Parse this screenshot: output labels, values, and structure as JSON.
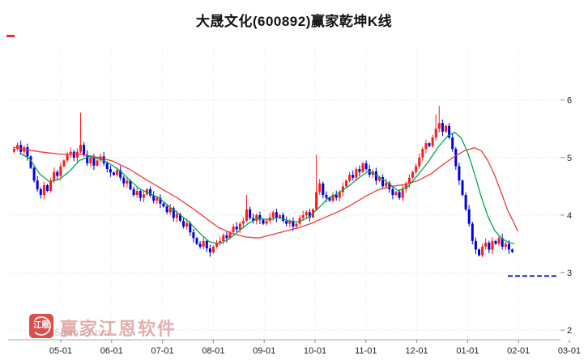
{
  "title": "大晟文化(600892)赢家乾坤K线",
  "watermark": {
    "brand": "赢家江恩软件",
    "logo_text": "江恩",
    "site": "55gann.com"
  },
  "chart_data": {
    "type": "candlestick",
    "title": "大晟文化(600892)赢家乾坤K线",
    "stock_name": "大晟文化",
    "stock_code": "600892",
    "ylim": [
      2,
      6
    ],
    "y_ticks": [
      6,
      5,
      4,
      3,
      2
    ],
    "x_ticks": [
      "05-01",
      "06-01",
      "07-01",
      "08-01",
      "09-01",
      "10-01",
      "11-01",
      "12-01",
      "01-01",
      "02-01",
      "03-01"
    ],
    "grid": true,
    "open_first": 5.1,
    "closes": [
      5.15,
      5.22,
      5.1,
      5.18,
      5.02,
      4.82,
      4.6,
      4.45,
      4.35,
      4.52,
      4.42,
      4.6,
      4.75,
      4.68,
      4.85,
      4.95,
      5.05,
      5.1,
      5.0,
      5.1,
      5.22,
      5.05,
      4.9,
      5.0,
      4.86,
      4.95,
      5.02,
      4.9,
      4.8,
      4.74,
      4.7,
      4.78,
      4.65,
      4.55,
      4.6,
      4.45,
      4.35,
      4.42,
      4.3,
      4.36,
      4.45,
      4.34,
      4.25,
      4.3,
      4.2,
      4.15,
      4.05,
      4.12,
      3.95,
      4.02,
      3.9,
      3.8,
      3.86,
      3.7,
      3.6,
      3.5,
      3.45,
      3.55,
      3.42,
      3.35,
      3.45,
      3.52,
      3.55,
      3.65,
      3.6,
      3.7,
      3.8,
      3.75,
      3.85,
      3.9,
      4.1,
      3.95,
      3.9,
      4.0,
      3.92,
      3.85,
      3.9,
      3.96,
      4.05,
      3.95,
      4.0,
      3.9,
      3.85,
      3.9,
      3.8,
      3.85,
      3.95,
      4.0,
      4.05,
      3.96,
      4.1,
      4.4,
      4.55,
      4.35,
      4.3,
      4.25,
      4.35,
      4.3,
      4.4,
      4.5,
      4.6,
      4.7,
      4.65,
      4.8,
      4.75,
      4.9,
      4.8,
      4.7,
      4.76,
      4.6,
      4.66,
      4.5,
      4.56,
      4.45,
      4.35,
      4.4,
      4.3,
      4.45,
      4.55,
      4.65,
      4.75,
      4.85,
      5.0,
      5.15,
      5.25,
      5.2,
      5.35,
      5.5,
      5.6,
      5.45,
      5.55,
      5.35,
      5.15,
      4.85,
      4.6,
      4.35,
      4.1,
      3.85,
      3.55,
      3.4,
      3.3,
      3.45,
      3.52,
      3.4,
      3.55,
      3.5,
      3.6,
      3.45,
      3.5,
      3.4,
      3.36
    ],
    "spike_highs": {
      "20": 5.78,
      "70": 4.35,
      "91": 5.05,
      "127": 5.75,
      "128": 5.9
    },
    "ma_red": [
      [
        0,
        5.18
      ],
      [
        8,
        5.1
      ],
      [
        14,
        5.06
      ],
      [
        20,
        5.06
      ],
      [
        26,
        5.0
      ],
      [
        30,
        4.94
      ],
      [
        35,
        4.8
      ],
      [
        40,
        4.62
      ],
      [
        45,
        4.45
      ],
      [
        50,
        4.28
      ],
      [
        55,
        4.08
      ],
      [
        58,
        3.95
      ],
      [
        62,
        3.78
      ],
      [
        66,
        3.68
      ],
      [
        70,
        3.62
      ],
      [
        74,
        3.6
      ],
      [
        78,
        3.66
      ],
      [
        82,
        3.72
      ],
      [
        86,
        3.78
      ],
      [
        90,
        3.86
      ],
      [
        94,
        3.96
      ],
      [
        98,
        4.06
      ],
      [
        102,
        4.18
      ],
      [
        106,
        4.32
      ],
      [
        110,
        4.44
      ],
      [
        114,
        4.5
      ],
      [
        118,
        4.53
      ],
      [
        122,
        4.6
      ],
      [
        126,
        4.72
      ],
      [
        130,
        4.9
      ],
      [
        133,
        5.02
      ],
      [
        136,
        5.12
      ],
      [
        139,
        5.17
      ],
      [
        141,
        5.12
      ],
      [
        143,
        4.95
      ],
      [
        145,
        4.7
      ],
      [
        147,
        4.4
      ],
      [
        149,
        4.08
      ],
      [
        151,
        3.85
      ],
      [
        152,
        3.72
      ]
    ],
    "ma_green": [
      [
        2,
        5.08
      ],
      [
        5,
        4.98
      ],
      [
        8,
        4.72
      ],
      [
        11,
        4.58
      ],
      [
        14,
        4.62
      ],
      [
        17,
        4.76
      ],
      [
        20,
        4.95
      ],
      [
        23,
        5.02
      ],
      [
        26,
        4.98
      ],
      [
        29,
        4.9
      ],
      [
        32,
        4.78
      ],
      [
        35,
        4.62
      ],
      [
        38,
        4.46
      ],
      [
        41,
        4.38
      ],
      [
        44,
        4.3
      ],
      [
        47,
        4.15
      ],
      [
        50,
        4.02
      ],
      [
        53,
        3.88
      ],
      [
        56,
        3.7
      ],
      [
        59,
        3.54
      ],
      [
        62,
        3.5
      ],
      [
        65,
        3.58
      ],
      [
        68,
        3.72
      ],
      [
        71,
        3.86
      ],
      [
        74,
        3.95
      ],
      [
        77,
        3.92
      ],
      [
        80,
        3.96
      ],
      [
        83,
        3.9
      ],
      [
        86,
        3.88
      ],
      [
        89,
        3.96
      ],
      [
        92,
        4.12
      ],
      [
        95,
        4.3
      ],
      [
        98,
        4.38
      ],
      [
        101,
        4.5
      ],
      [
        104,
        4.64
      ],
      [
        107,
        4.76
      ],
      [
        110,
        4.68
      ],
      [
        113,
        4.56
      ],
      [
        116,
        4.42
      ],
      [
        119,
        4.5
      ],
      [
        122,
        4.7
      ],
      [
        125,
        4.92
      ],
      [
        128,
        5.18
      ],
      [
        131,
        5.38
      ],
      [
        133,
        5.44
      ],
      [
        135,
        5.34
      ],
      [
        137,
        5.08
      ],
      [
        139,
        4.72
      ],
      [
        141,
        4.32
      ],
      [
        143,
        3.98
      ],
      [
        145,
        3.74
      ],
      [
        147,
        3.6
      ],
      [
        149,
        3.53
      ],
      [
        151,
        3.5
      ]
    ],
    "support_line": {
      "value": 2.94,
      "color": "#1f2fd0"
    },
    "colors": {
      "up": "#ff1a1a",
      "down": "#0000e0",
      "ma_red": "#f03838",
      "ma_green": "#00a651"
    }
  }
}
